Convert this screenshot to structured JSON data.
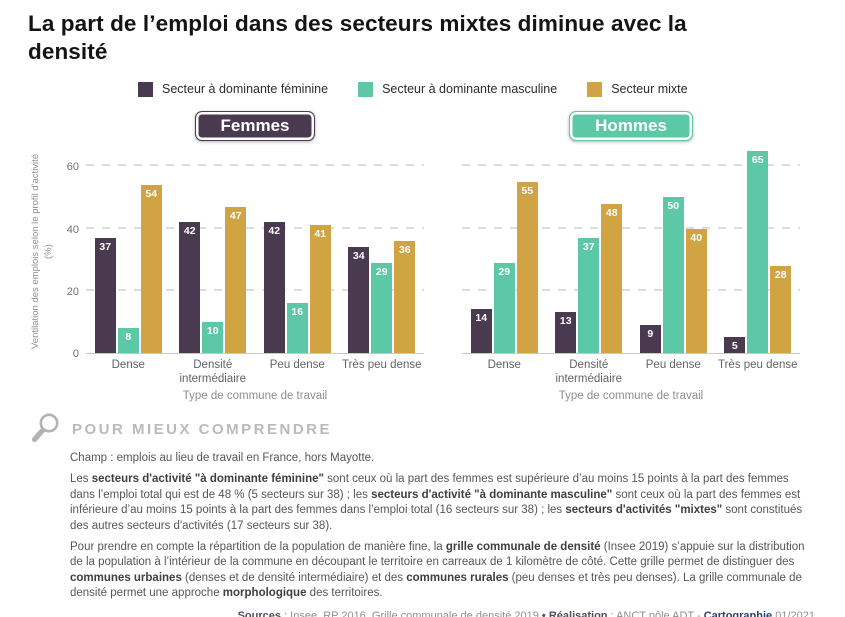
{
  "title": "La part de l’emploi dans des secteurs mixtes diminue avec la densité",
  "colors": {
    "feminine": "#493a50",
    "masculine": "#5cc8a6",
    "mixte": "#d0a343",
    "navy": "#2c3e6e",
    "bold_text": "#3e3e45"
  },
  "legend": [
    {
      "label": "Secteur à dominante féminine",
      "color": "#493a50",
      "icon": "square-swatch-icon"
    },
    {
      "label": "Secteur à dominante masculine",
      "color": "#5cc8a6",
      "icon": "square-swatch-icon"
    },
    {
      "label": "Secteur mixte",
      "color": "#d0a343",
      "icon": "square-swatch-icon"
    }
  ],
  "chart_data": [
    {
      "type": "bar",
      "title": "Femmes",
      "categories": [
        "Dense",
        "Densité intermédiaire",
        "Peu dense",
        "Très peu dense"
      ],
      "series": [
        {
          "name": "Secteur à dominante féminine",
          "color": "#493a50",
          "values": [
            37,
            42,
            42,
            34
          ]
        },
        {
          "name": "Secteur à dominante masculine",
          "color": "#5cc8a6",
          "values": [
            8,
            10,
            16,
            29
          ]
        },
        {
          "name": "Secteur mixte",
          "color": "#d0a343",
          "values": [
            54,
            47,
            41,
            36
          ]
        }
      ],
      "xlabel": "Type de commune de travail",
      "ylabel": "Ventilation des emplois selon le profil d'activité (%)",
      "yticks": [
        0,
        20,
        40,
        60
      ],
      "ylim": [
        0,
        66
      ],
      "grid": "dashed-horizontal",
      "value_labels": "inside-top-white"
    },
    {
      "type": "bar",
      "title": "Hommes",
      "categories": [
        "Dense",
        "Densité intermédiaire",
        "Peu dense",
        "Très peu dense"
      ],
      "series": [
        {
          "name": "Secteur à dominante féminine",
          "color": "#493a50",
          "values": [
            14,
            13,
            9,
            5
          ]
        },
        {
          "name": "Secteur à dominante masculine",
          "color": "#5cc8a6",
          "values": [
            29,
            37,
            50,
            65
          ]
        },
        {
          "name": "Secteur mixte",
          "color": "#d0a343",
          "values": [
            55,
            48,
            40,
            28
          ]
        }
      ],
      "xlabel": "Type de commune de travail",
      "ylabel": "",
      "yticks": [
        0,
        20,
        40,
        60
      ],
      "ylim": [
        0,
        66
      ],
      "grid": "dashed-horizontal",
      "value_labels": "inside-top-white"
    }
  ],
  "footer": {
    "heading": "POUR MIEUX COMPRENDRE",
    "icon": "magnifier-icon",
    "paragraphs": [
      [
        {
          "t": "Champ : emplois au lieu de travail en France, hors Mayotte."
        }
      ],
      [
        {
          "t": "Les "
        },
        {
          "t": "secteurs d'activité \"à dominante féminine\"",
          "b": true,
          "c": "#3e3e45"
        },
        {
          "t": " sont ceux où la part des femmes est supérieure d’au moins 15 points à la part des femmes dans l’emploi total qui est de 48 % (5 secteurs sur 38) ; les "
        },
        {
          "t": "secteurs d'activité \"à dominante masculine\"",
          "b": true,
          "c": "#3e3e45"
        },
        {
          "t": " sont ceux où la part des femmes est inférieure d’au moins 15 points à la part des femmes dans l’emploi total (16 secteurs sur 38) ; les "
        },
        {
          "t": "secteurs d'activités \"mixtes\"",
          "b": true,
          "c": "#3e3e45"
        },
        {
          "t": " sont constitués des autres secteurs d'activités (17 secteurs sur 38)."
        }
      ],
      [
        {
          "t": "Pour prendre en compte la répartition de la population de manière fine, la "
        },
        {
          "t": "grille communale de densité",
          "b": true,
          "c": "#3e3e45"
        },
        {
          "t": " (Insee 2019) s’appuie sur la distribution de la population à l’intérieur de la commune en découpant le territoire en carreaux de 1 kilomètre de côté. Cette grille permet de distinguer des "
        },
        {
          "t": "communes urbaines",
          "b": true,
          "c": "#3e3e45"
        },
        {
          "t": " (denses et de densité intermédiaire) et des "
        },
        {
          "t": "communes rurales",
          "b": true,
          "c": "#3e3e45"
        },
        {
          "t": " (peu denses et très peu denses). La grille communale de densité permet une approche "
        },
        {
          "t": "morphologique",
          "b": true,
          "c": "#3e3e45"
        },
        {
          "t": " des territoires."
        }
      ]
    ],
    "sources": [
      {
        "t": "Sources",
        "b": true,
        "c": "#4e4f58"
      },
      {
        "t": " : Insee, RP 2016, Grille communale de densité 2019 "
      },
      {
        "t": "• ",
        "b": true,
        "c": "#4e4f58"
      },
      {
        "t": "Réalisation",
        "b": true,
        "c": "#4e4f58"
      },
      {
        "t": " : ANCT pôle ADT - "
      },
      {
        "t": "Cartographie",
        "b": true,
        "c": "#2c3e6e"
      },
      {
        "t": " 01/2021"
      }
    ]
  }
}
